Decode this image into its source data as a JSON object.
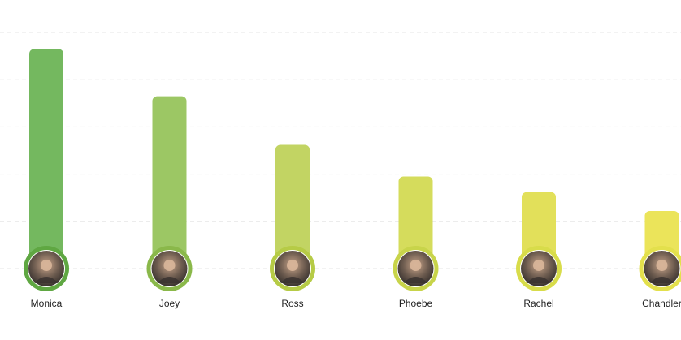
{
  "chart_data": {
    "type": "bar",
    "title": "",
    "xlabel": "",
    "ylabel": "",
    "categories": [
      "Monica",
      "Joey",
      "Ross",
      "Phoebe",
      "Rachel",
      "Chandler"
    ],
    "values": [
      46.5,
      36.5,
      26.2,
      19.5,
      16.2,
      12.2
    ],
    "ylim": [
      0,
      50
    ],
    "grid": true,
    "grid_style": "dashed",
    "bar_colors": [
      "#74b85f",
      "#9cc764",
      "#c2d463",
      "#d5dc5c",
      "#e2e05a",
      "#ebe45a"
    ],
    "avatar_ring_colors": [
      "#5fa742",
      "#8ab84a",
      "#b6cb46",
      "#c8d44a",
      "#d8dc4a",
      "#e3e04c"
    ],
    "avatars": [
      "person-photo",
      "person-photo",
      "person-photo",
      "person-photo",
      "person-photo",
      "person-photo"
    ]
  }
}
